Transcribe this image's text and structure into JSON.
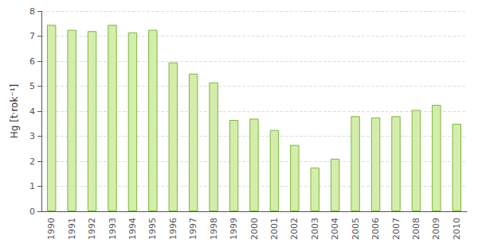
{
  "chart_data": {
    "type": "bar",
    "ylabel": "Hg [t·rok⁻¹]",
    "categories": [
      "1990",
      "1991",
      "1992",
      "1993",
      "1994",
      "1995",
      "1996",
      "1997",
      "1998",
      "1999",
      "2000",
      "2001",
      "2002",
      "2003",
      "2004",
      "2005",
      "2006",
      "2007",
      "2008",
      "2009",
      "2010"
    ],
    "values": [
      7.45,
      7.25,
      7.2,
      7.45,
      7.15,
      7.25,
      5.95,
      5.5,
      5.15,
      3.65,
      3.7,
      3.25,
      2.65,
      1.75,
      2.1,
      3.8,
      3.75,
      3.8,
      4.05,
      4.25,
      3.5
    ],
    "color": "#d4edaa",
    "ylim": [
      0,
      8
    ],
    "yticks": [
      0,
      1,
      2,
      3,
      4,
      5,
      6,
      7,
      8
    ],
    "grid": true
  }
}
